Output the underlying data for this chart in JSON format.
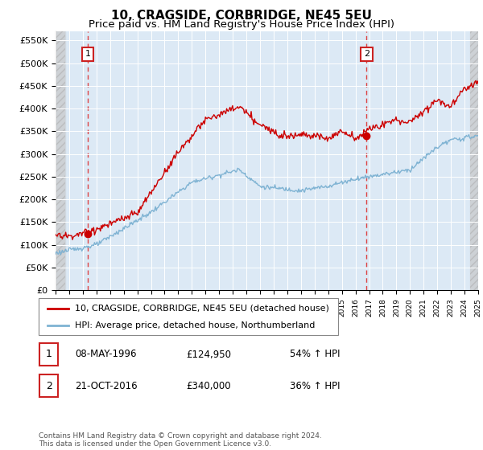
{
  "title": "10, CRAGSIDE, CORBRIDGE, NE45 5EU",
  "subtitle": "Price paid vs. HM Land Registry's House Price Index (HPI)",
  "ylim": [
    0,
    570000
  ],
  "yticks": [
    0,
    50000,
    100000,
    150000,
    200000,
    250000,
    300000,
    350000,
    400000,
    450000,
    500000,
    550000
  ],
  "ytick_labels": [
    "£0",
    "£50K",
    "£100K",
    "£150K",
    "£200K",
    "£250K",
    "£300K",
    "£350K",
    "£400K",
    "£450K",
    "£500K",
    "£550K"
  ],
  "sale1_date": 1996.36,
  "sale1_price": 124950,
  "sale2_date": 2016.81,
  "sale2_price": 340000,
  "red_line_color": "#cc0000",
  "blue_line_color": "#7fb3d3",
  "vline_color": "#dd4444",
  "dot_color": "#cc0000",
  "bg_color": "#dce9f5",
  "hatch_color": "#c8c8c8",
  "grid_color": "white",
  "legend_entries": [
    "10, CRAGSIDE, CORBRIDGE, NE45 5EU (detached house)",
    "HPI: Average price, detached house, Northumberland"
  ],
  "footnote": "Contains HM Land Registry data © Crown copyright and database right 2024.\nThis data is licensed under the Open Government Licence v3.0."
}
